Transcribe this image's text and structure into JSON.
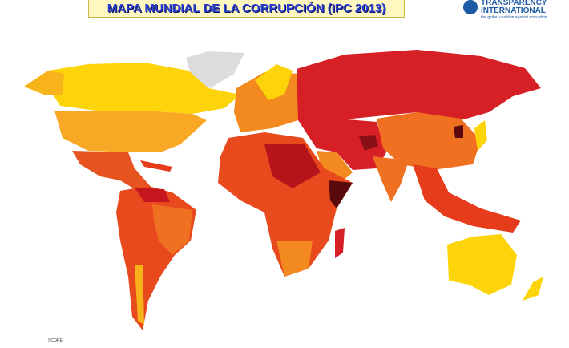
{
  "header": {
    "title": "MAPA MUNDIAL DE LA CORRUPCIÓN  (IPC 2013)"
  },
  "logo": {
    "name_line1": "TRANSPARENCY",
    "name_line2": "INTERNATIONAL",
    "tagline": "the global coalition against corruption"
  },
  "legend": {
    "label": "SCORE"
  }
}
